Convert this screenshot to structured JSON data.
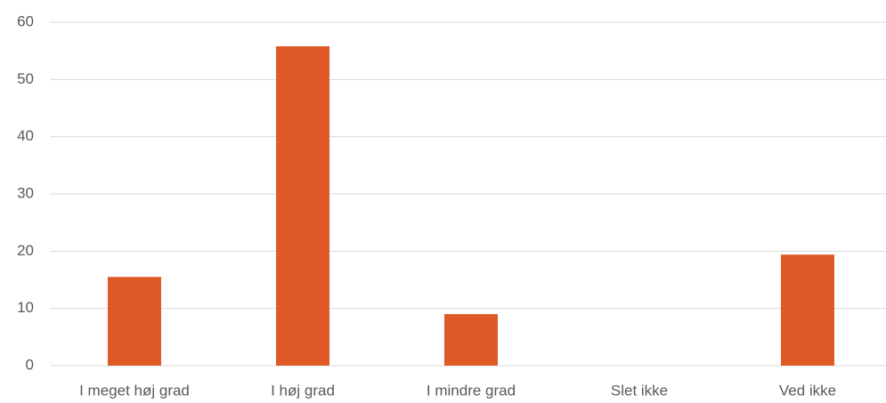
{
  "chart_data": {
    "type": "bar",
    "categories": [
      "I meget høj grad",
      "I høj grad",
      "I mindre grad",
      "Slet ikke",
      "Ved ikke"
    ],
    "values": [
      15.5,
      55.8,
      9.0,
      0,
      19.4
    ],
    "color": "#e05a28",
    "ylim": [
      0,
      60
    ],
    "yticks": [
      0,
      10,
      20,
      30,
      40,
      50,
      60
    ],
    "grid": true
  }
}
